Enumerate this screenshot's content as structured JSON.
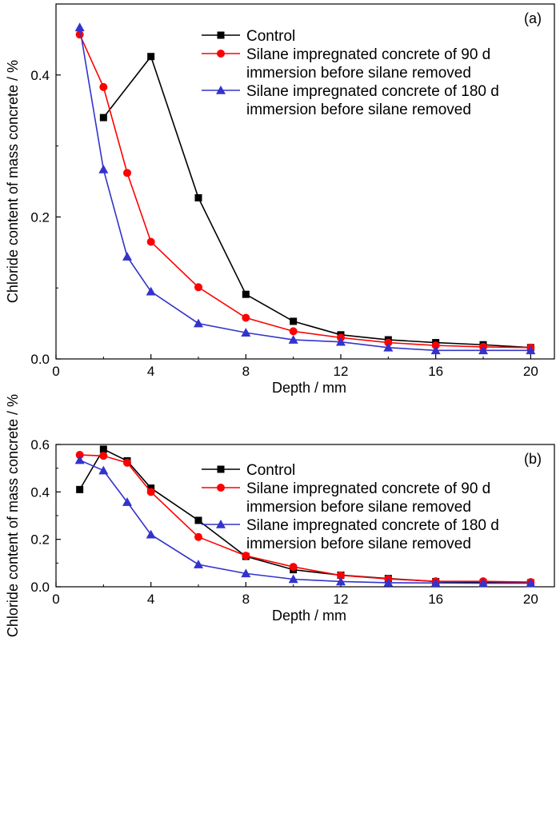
{
  "chart_data": [
    {
      "type": "line",
      "panel_label": "(a)",
      "xlabel": "Depth / mm",
      "ylabel": "Chloride content of mass concrete / %",
      "xlim": [
        0,
        21
      ],
      "ylim": [
        0,
        0.5
      ],
      "xticks": [
        0,
        4,
        8,
        12,
        16,
        20
      ],
      "yticks": [
        0.0,
        0.2,
        0.4
      ],
      "legend_position": "top-right",
      "grid": false,
      "series": [
        {
          "name": "Control",
          "legend_lines": [
            "Control"
          ],
          "color": "#000000",
          "marker": "square",
          "x": [
            2,
            4,
            6,
            8,
            10,
            12,
            14,
            16,
            18,
            20
          ],
          "y": [
            0.34,
            0.426,
            0.227,
            0.091,
            0.053,
            0.034,
            0.027,
            0.023,
            0.02,
            0.016
          ]
        },
        {
          "name": "Silane impregnated concrete of 90 d immersion before silane removed",
          "legend_lines": [
            "Silane impregnated concrete of 90 d",
            "immersion before silane removed"
          ],
          "color": "#ff0000",
          "marker": "circle",
          "x": [
            1,
            2,
            3,
            4,
            6,
            8,
            10,
            12,
            14,
            16,
            18,
            20
          ],
          "y": [
            0.457,
            0.383,
            0.262,
            0.165,
            0.101,
            0.058,
            0.039,
            0.03,
            0.023,
            0.019,
            0.017,
            0.016
          ]
        },
        {
          "name": "Silane impregnated concrete of 180 d immersion before silane removed",
          "legend_lines": [
            "Silane impregnated concrete of 180 d",
            "immersion before silane removed"
          ],
          "color": "#3333cc",
          "marker": "triangle",
          "x": [
            1,
            2,
            3,
            4,
            6,
            8,
            10,
            12,
            14,
            16,
            18,
            20
          ],
          "y": [
            0.467,
            0.267,
            0.144,
            0.095,
            0.05,
            0.037,
            0.027,
            0.024,
            0.016,
            0.012,
            0.012,
            0.012
          ]
        }
      ]
    },
    {
      "type": "line",
      "panel_label": "(b)",
      "xlabel": "Depth / mm",
      "ylabel": "Chloride content of mass concrete / %",
      "xlim": [
        0,
        21
      ],
      "ylim": [
        0,
        0.6
      ],
      "xticks": [
        0,
        4,
        8,
        12,
        16,
        20
      ],
      "yticks": [
        0.0,
        0.2,
        0.4,
        0.6
      ],
      "legend_position": "top-right",
      "grid": false,
      "series": [
        {
          "name": "Control",
          "legend_lines": [
            "Control"
          ],
          "color": "#000000",
          "marker": "square",
          "x": [
            1,
            2,
            3,
            4,
            6,
            8,
            10,
            12,
            14,
            16,
            18,
            20
          ],
          "y": [
            0.41,
            0.58,
            0.531,
            0.416,
            0.28,
            0.128,
            0.072,
            0.049,
            0.035,
            0.022,
            0.018,
            0.017
          ]
        },
        {
          "name": "Silane impregnated concrete of 90 d immersion before silane removed",
          "legend_lines": [
            "Silane impregnated concrete of 90 d",
            "immersion before silane removed"
          ],
          "color": "#ff0000",
          "marker": "circle",
          "x": [
            1,
            2,
            3,
            4,
            6,
            8,
            10,
            12,
            14,
            16,
            18,
            20
          ],
          "y": [
            0.556,
            0.552,
            0.523,
            0.4,
            0.21,
            0.131,
            0.084,
            0.048,
            0.033,
            0.023,
            0.023,
            0.02
          ]
        },
        {
          "name": "Silane impregnated concrete of 180 d immersion before silane removed",
          "legend_lines": [
            "Silane impregnated concrete of 180 d",
            "immersion before silane removed"
          ],
          "color": "#3333cc",
          "marker": "triangle",
          "x": [
            1,
            2,
            3,
            4,
            6,
            8,
            10,
            12,
            14,
            16,
            18,
            20
          ],
          "y": [
            0.534,
            0.49,
            0.357,
            0.22,
            0.094,
            0.056,
            0.032,
            0.022,
            0.017,
            0.016,
            0.015,
            0.015
          ]
        }
      ]
    }
  ]
}
